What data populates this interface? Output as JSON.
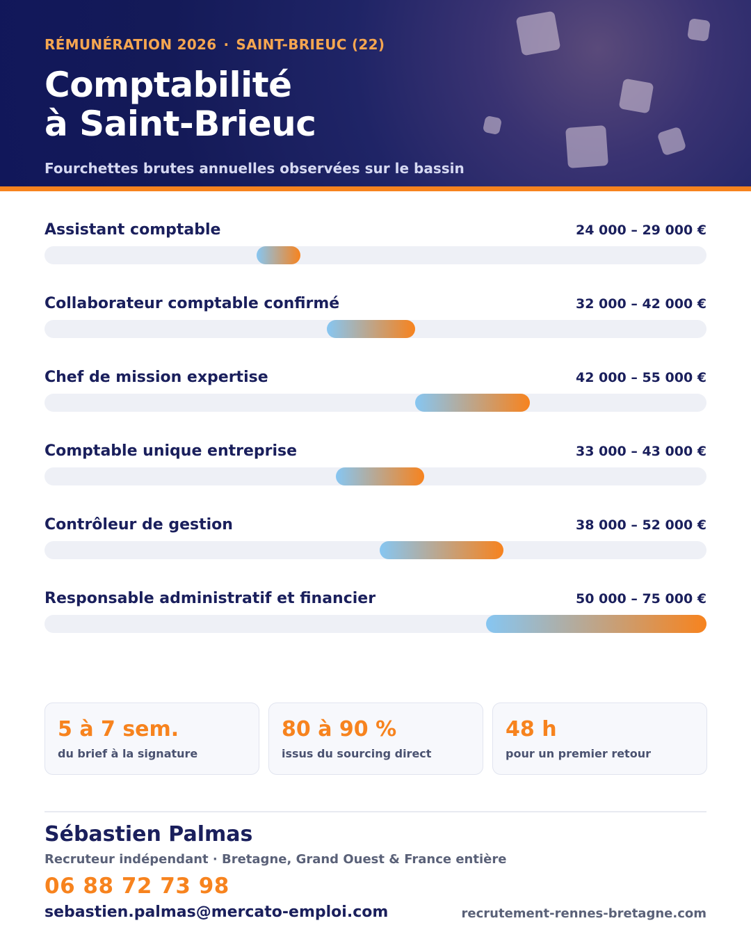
{
  "header": {
    "eyebrow_left": "RÉMUNÉRATION 2026",
    "eyebrow_sep": "·",
    "eyebrow_right": "SAINT-BRIEUC (22)",
    "title_line1": "Comptabilité",
    "title_line2": "à Saint-Brieuc",
    "subtitle": "Fourchettes brutes annuelles observées sur le bassin"
  },
  "chart_data": {
    "type": "bar",
    "orientation": "horizontal-range",
    "xlim": [
      0,
      75000
    ],
    "unit": "€",
    "grid": false,
    "colors": {
      "track": "#eef0f6",
      "fill_start": "#86c6f2",
      "fill_end": "#f7831e"
    },
    "series": [
      {
        "label": "Assistant comptable",
        "min": 24000,
        "max": 29000,
        "value_text": "24 000 – 29 000 €"
      },
      {
        "label": "Collaborateur comptable confirmé",
        "min": 32000,
        "max": 42000,
        "value_text": "32 000 – 42 000 €"
      },
      {
        "label": "Chef de mission expertise",
        "min": 42000,
        "max": 55000,
        "value_text": "42 000 – 55 000 €"
      },
      {
        "label": "Comptable unique entreprise",
        "min": 33000,
        "max": 43000,
        "value_text": "33 000 – 43 000 €"
      },
      {
        "label": "Contrôleur de gestion",
        "min": 38000,
        "max": 52000,
        "value_text": "38 000 – 52 000 €"
      },
      {
        "label": "Responsable administratif et financier",
        "min": 50000,
        "max": 75000,
        "value_text": "50 000 – 75 000 €"
      }
    ]
  },
  "stats": [
    {
      "value": "5 à 7 sem.",
      "label": "du brief à la signature"
    },
    {
      "value": "80 à 90 %",
      "label": "issus du sourcing direct"
    },
    {
      "value": "48 h",
      "label": "pour un premier retour"
    }
  ],
  "contact": {
    "name": "Sébastien Palmas",
    "role": "Recruteur indépendant · Bretagne, Grand Ouest & France entière",
    "phone": "06 88 72 73 98",
    "email": "sebastien.palmas@mercato-emploi.com",
    "website": "recrutement-rennes-bretagne.com"
  },
  "colors": {
    "accent": "#f7831e",
    "navy": "#1a1f5c"
  }
}
